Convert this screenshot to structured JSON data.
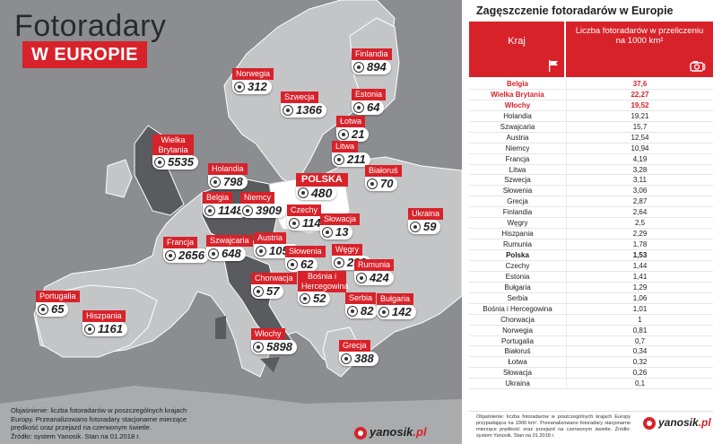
{
  "map": {
    "title": "Fotoradary",
    "subtitle": "W EUROPIE",
    "markers": [
      {
        "country": "Finlandia",
        "value": "894"
      },
      {
        "country": "Norwegia",
        "value": "312"
      },
      {
        "country": "Szwecja",
        "value": "1366"
      },
      {
        "country": "Estonia",
        "value": "64"
      },
      {
        "country": "Łotwa",
        "value": "21"
      },
      {
        "country": "Litwa",
        "value": "211"
      },
      {
        "country": "Białoruś",
        "value": "70"
      },
      {
        "country": "Wielka Brytania",
        "value": "5535"
      },
      {
        "country": "Holandia",
        "value": "798"
      },
      {
        "country": "POLSKA",
        "value": "480"
      },
      {
        "country": "Belgia",
        "value": "1148"
      },
      {
        "country": "Niemcy",
        "value": "3909"
      },
      {
        "country": "Czechy",
        "value": "114"
      },
      {
        "country": "Słowacja",
        "value": "13"
      },
      {
        "country": "Ukraina",
        "value": "59"
      },
      {
        "country": "Francja",
        "value": "2656"
      },
      {
        "country": "Szwajcaria",
        "value": "648"
      },
      {
        "country": "Austria",
        "value": "1052"
      },
      {
        "country": "Słowenia",
        "value": "62"
      },
      {
        "country": "Węgry",
        "value": "233"
      },
      {
        "country": "Rumunia",
        "value": "424"
      },
      {
        "country": "Portugalia",
        "value": "65"
      },
      {
        "country": "Chorwacja",
        "value": "57"
      },
      {
        "country": "Bośnia i Hercegowina",
        "value": "52"
      },
      {
        "country": "Serbia",
        "value": "82"
      },
      {
        "country": "Bułgaria",
        "value": "142"
      },
      {
        "country": "Hiszpania",
        "value": "1161"
      },
      {
        "country": "Włochy",
        "value": "5898"
      },
      {
        "country": "Grecja",
        "value": "388"
      }
    ],
    "notes": [
      "Objaśnienie: liczba fotoradarów w poszczególnych krajach",
      "Europy. Przeanalizowano fotoradary stacjonarne mierzące",
      "prędkość oraz przejazd na czerwonym świetle.",
      "Źródło: system Yanosik. Stan na 01.2018 r."
    ],
    "brand_name": "yanosik",
    "brand_domain": ".pl"
  },
  "table": {
    "title": "Zagęszczenie fotoradarów w Europie",
    "col1_header": "Kraj",
    "col2_header": "Liczba fotoradarów w przeliczeniu na 1000 km²",
    "footnote": "Objaśnienie: liczba fotoradarów w poszczególnych krajach Europy przypadająca na 1000 km². Przeanalizowano fotoradary stacjonarne mierzące prędkość oraz przejazd na czerwonym świetle. Źródło: system Yanosik. Stan na 01.2018 r.",
    "brand_name": "yanosik",
    "brand_domain": ".pl"
  },
  "colors": {
    "accent": "#d8222a",
    "map_sea": "#8b8d90",
    "map_land": "#c4c5c7",
    "map_highlight": "#5a5b5e"
  },
  "chart_data": {
    "type": "table",
    "title": "Zagęszczenie fotoradarów w Europie",
    "columns": [
      "Kraj",
      "Liczba fotoradarów w przeliczeniu na 1000 km²"
    ],
    "rows": [
      {
        "country": "Belgia",
        "value": "37,6",
        "style": "red"
      },
      {
        "country": "Wielka Brytania",
        "value": "22,27",
        "style": "red"
      },
      {
        "country": "Włochy",
        "value": "19,52",
        "style": "red"
      },
      {
        "country": "Holandia",
        "value": "19,21"
      },
      {
        "country": "Szwajcaria",
        "value": "15,7"
      },
      {
        "country": "Austria",
        "value": "12,54"
      },
      {
        "country": "Niemcy",
        "value": "10,94"
      },
      {
        "country": "Francja",
        "value": "4,19"
      },
      {
        "country": "Litwa",
        "value": "3,28"
      },
      {
        "country": "Szwecja",
        "value": "3,11"
      },
      {
        "country": "Słowenia",
        "value": "3,06"
      },
      {
        "country": "Grecja",
        "value": "2,87"
      },
      {
        "country": "Finlandia",
        "value": "2,64"
      },
      {
        "country": "Węgry",
        "value": "2,5"
      },
      {
        "country": "Hiszpania",
        "value": "2,29"
      },
      {
        "country": "Rumunia",
        "value": "1,78"
      },
      {
        "country": "Polska",
        "value": "1,53",
        "style": "bold"
      },
      {
        "country": "Czechy",
        "value": "1,44"
      },
      {
        "country": "Estonia",
        "value": "1,41"
      },
      {
        "country": "Bułgaria",
        "value": "1,29"
      },
      {
        "country": "Serbia",
        "value": "1,06"
      },
      {
        "country": "Bośnia i Hercegowina",
        "value": "1,01"
      },
      {
        "country": "Chorwacja",
        "value": "1"
      },
      {
        "country": "Norwegia",
        "value": "0,81"
      },
      {
        "country": "Portugalia",
        "value": "0,7"
      },
      {
        "country": "Białoruś",
        "value": "0,34"
      },
      {
        "country": "Łotwa",
        "value": "0,32"
      },
      {
        "country": "Słowacja",
        "value": "0,26"
      },
      {
        "country": "Ukraina",
        "value": "0,1"
      }
    ]
  }
}
